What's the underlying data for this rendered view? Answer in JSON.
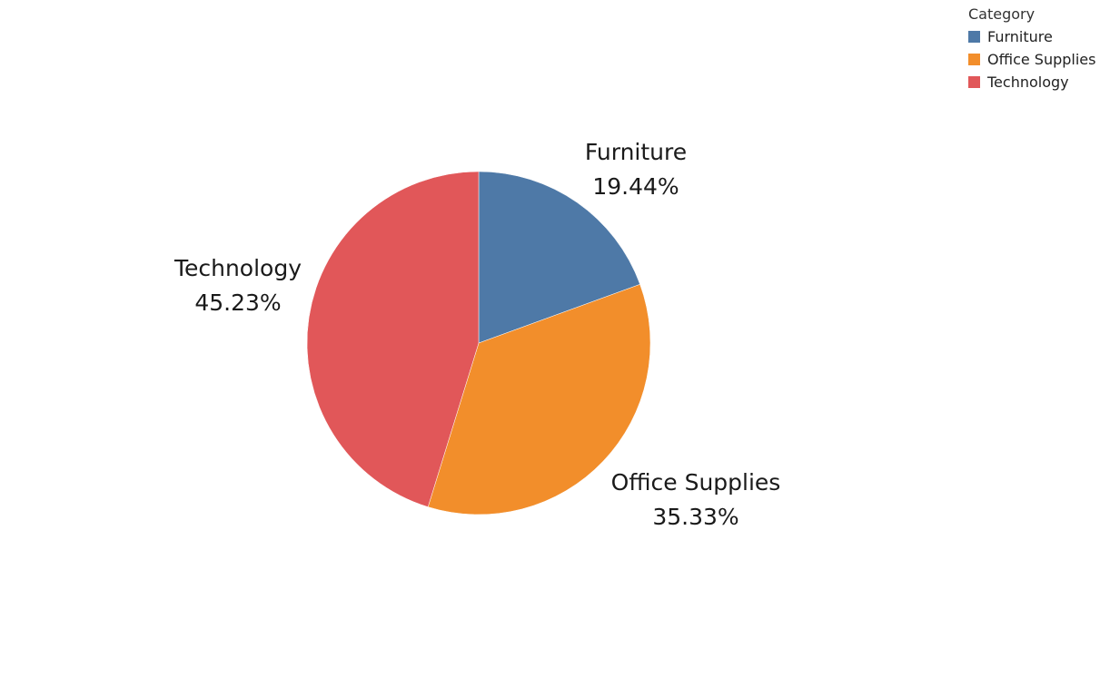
{
  "chart_data": {
    "type": "pie",
    "legend_title": "Category",
    "legend_placement": "top-right",
    "slices": [
      {
        "label": "Furniture",
        "value": 19.44,
        "display": "19.44%",
        "color": "#4e79a7"
      },
      {
        "label": "Office Supplies",
        "value": 35.33,
        "display": "35.33%",
        "color": "#f28e2b"
      },
      {
        "label": "Technology",
        "value": 45.23,
        "display": "45.23%",
        "color": "#e15759"
      }
    ]
  }
}
